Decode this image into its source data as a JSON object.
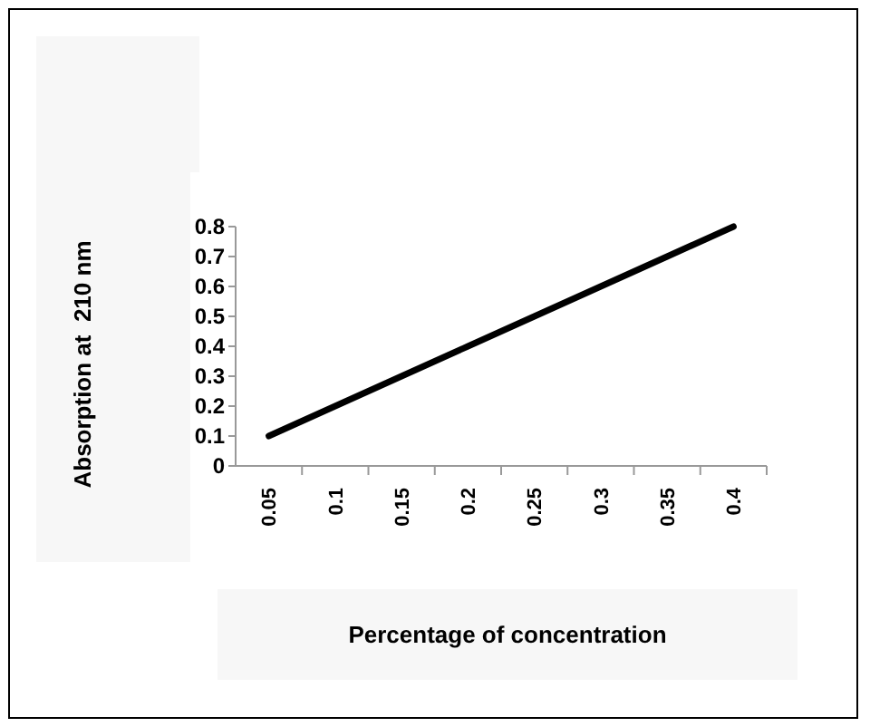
{
  "chart_data": {
    "type": "line",
    "xlabel": "Percentage of concentration",
    "ylabel": "Absorption at  210 nm",
    "categories": [
      "0.05",
      "0.1",
      "0.15",
      "0.2",
      "0.25",
      "0.3",
      "0.35",
      "0.4"
    ],
    "series": [
      {
        "color": "#000000",
        "values": [
          0.1,
          0.2,
          0.3,
          0.4,
          0.5,
          0.6,
          0.7,
          0.8
        ]
      }
    ],
    "ylim": [
      0,
      0.8
    ],
    "yticks": [
      0,
      0.1,
      0.2,
      0.3,
      0.4,
      0.5,
      0.6,
      0.7,
      0.8
    ],
    "grid": false,
    "marker": "none",
    "line_style": "solid"
  }
}
